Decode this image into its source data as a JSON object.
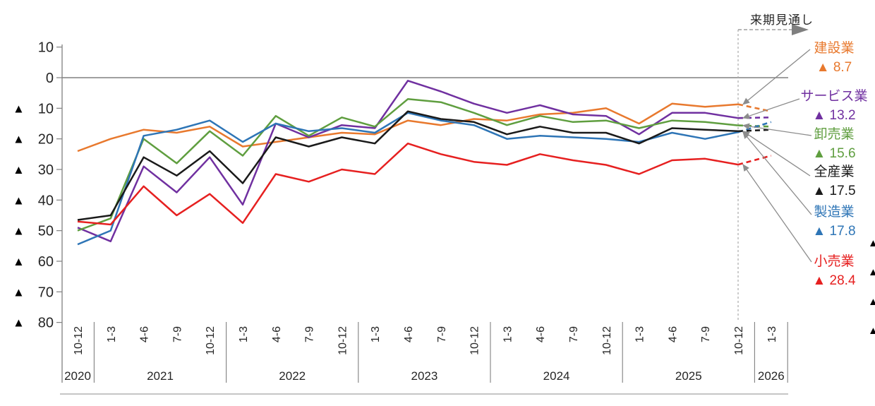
{
  "annotation": {
    "forecast_label": "来期見通し"
  },
  "decor": {
    "clipped_triangles": [
      "▲",
      "▲",
      "▲",
      "▲"
    ]
  },
  "chart_data": {
    "type": "line",
    "title": "",
    "ylim": [
      -80,
      10
    ],
    "grid": false,
    "negative_prefix": "▲",
    "y_axis": {
      "tick_values": [
        10,
        0,
        -10,
        -20,
        -30,
        -40,
        -50,
        -60,
        -70,
        -80
      ]
    },
    "x_axis": {
      "quarters": [
        "10-12",
        "1-3",
        "4-6",
        "7-9",
        "10-12",
        "1-3",
        "4-6",
        "7-9",
        "10-12",
        "1-3",
        "4-6",
        "7-9",
        "10-12",
        "1-3",
        "4-6",
        "7-9",
        "10-12",
        "1-3",
        "4-6",
        "7-9",
        "10-12",
        "1-3"
      ],
      "years": [
        {
          "label": "2020",
          "count": 1
        },
        {
          "label": "2021",
          "count": 4
        },
        {
          "label": "2022",
          "count": 4
        },
        {
          "label": "2023",
          "count": 4
        },
        {
          "label": "2024",
          "count": 4
        },
        {
          "label": "2025",
          "count": 4
        },
        {
          "label": "2026",
          "count": 1
        }
      ]
    },
    "forecast": {
      "boundary_index": 20,
      "forecast_points": 1
    },
    "legend_position": "right",
    "series": [
      {
        "name": "建設業",
        "color": "#E8792E",
        "label_value": "▲ 8.7",
        "values": [
          -24,
          -20,
          -17,
          -18,
          -16,
          -22.5,
          -21,
          -19.5,
          -18,
          -18.5,
          -14,
          -15.5,
          -13.5,
          -14,
          -12,
          -11.5,
          -10,
          -15,
          -8.5,
          -9.5,
          -8.7,
          -11
        ]
      },
      {
        "name": "サービス業",
        "color": "#7030A0",
        "label_value": "▲ 13.2",
        "values": [
          -49,
          -53.5,
          -29,
          -37.5,
          -26,
          -41.5,
          -15,
          -19.5,
          -15.5,
          -16.5,
          -1,
          -4.5,
          -8.5,
          -11.5,
          -9,
          -12,
          -12.5,
          -18.5,
          -11.5,
          -11.5,
          -13.2,
          -13
        ]
      },
      {
        "name": "卸売業",
        "color": "#5F9E3F",
        "label_value": "▲ 15.6",
        "values": [
          -50,
          -46,
          -20,
          -28,
          -17.5,
          -25.5,
          -12.5,
          -19,
          -13,
          -16,
          -7,
          -8,
          -11.5,
          -15.5,
          -12.5,
          -14.5,
          -14,
          -16.5,
          -14,
          -14.5,
          -15.6,
          -16
        ]
      },
      {
        "name": "全産業",
        "color": "#1A1A1A",
        "label_value": "▲ 17.5",
        "values": [
          -46.5,
          -45,
          -26,
          -32,
          -24,
          -34.5,
          -19.5,
          -22.5,
          -19.5,
          -21.5,
          -11,
          -13.5,
          -14.5,
          -18.5,
          -16,
          -18,
          -18,
          -21.5,
          -16.5,
          -17,
          -17.5,
          -17
        ]
      },
      {
        "name": "製造業",
        "color": "#2E75B6",
        "label_value": "▲ 17.8",
        "values": [
          -54.5,
          -50,
          -19,
          -17,
          -14,
          -21,
          -15,
          -17.5,
          -16.5,
          -18,
          -11.5,
          -14,
          -15.5,
          -20,
          -19,
          -19.5,
          -20,
          -21,
          -18,
          -20,
          -17.8,
          -14.5
        ]
      },
      {
        "name": "小売業",
        "color": "#E62020",
        "label_value": "▲ 28.4",
        "values": [
          -47,
          -48,
          -35.5,
          -45,
          -38,
          -47.5,
          -31.5,
          -34,
          -30,
          -31.5,
          -21.5,
          -25,
          -27.5,
          -28.5,
          -25,
          -27,
          -28.5,
          -31.5,
          -27,
          -26.5,
          -28.4,
          -25.5
        ]
      }
    ]
  }
}
